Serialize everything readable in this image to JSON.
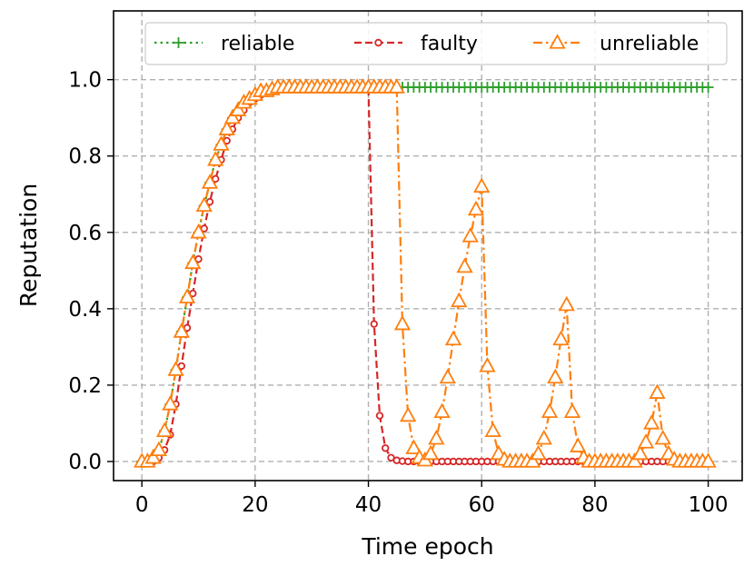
{
  "chart_data": {
    "type": "line",
    "title": "",
    "xlabel": "Time epoch",
    "ylabel": "Reputation",
    "xlim": [
      -5,
      106
    ],
    "ylim": [
      -0.05,
      1.18
    ],
    "xticks": [
      0,
      20,
      40,
      60,
      80,
      100
    ],
    "yticks": [
      0.0,
      0.2,
      0.4,
      0.6,
      0.8,
      1.0
    ],
    "xtick_labels": [
      "0",
      "20",
      "40",
      "60",
      "80",
      "100"
    ],
    "ytick_labels": [
      "0.0",
      "0.2",
      "0.4",
      "0.6",
      "0.8",
      "1.0"
    ],
    "grid": true,
    "legend_position": "top",
    "x": [
      0,
      1,
      2,
      3,
      4,
      5,
      6,
      7,
      8,
      9,
      10,
      11,
      12,
      13,
      14,
      15,
      16,
      17,
      18,
      19,
      20,
      21,
      22,
      23,
      24,
      25,
      26,
      27,
      28,
      29,
      30,
      31,
      32,
      33,
      34,
      35,
      36,
      37,
      38,
      39,
      40,
      41,
      42,
      43,
      44,
      45,
      46,
      47,
      48,
      49,
      50,
      51,
      52,
      53,
      54,
      55,
      56,
      57,
      58,
      59,
      60,
      61,
      62,
      63,
      64,
      65,
      66,
      67,
      68,
      69,
      70,
      71,
      72,
      73,
      74,
      75,
      76,
      77,
      78,
      79,
      80,
      81,
      82,
      83,
      84,
      85,
      86,
      87,
      88,
      89,
      90,
      91,
      92,
      93,
      94,
      95,
      96,
      97,
      98,
      99,
      100
    ],
    "series": [
      {
        "name": "reliable",
        "color": "#2ca02c",
        "line_style": "dotted",
        "marker": "plus",
        "values": [
          0.0,
          0.0,
          0.01,
          0.03,
          0.08,
          0.15,
          0.24,
          0.34,
          0.43,
          0.52,
          0.6,
          0.67,
          0.73,
          0.79,
          0.83,
          0.87,
          0.9,
          0.92,
          0.94,
          0.95,
          0.96,
          0.97,
          0.97,
          0.975,
          0.98,
          0.98,
          0.98,
          0.98,
          0.98,
          0.98,
          0.98,
          0.98,
          0.98,
          0.98,
          0.98,
          0.98,
          0.98,
          0.98,
          0.98,
          0.98,
          0.98,
          0.98,
          0.98,
          0.98,
          0.98,
          0.98,
          0.98,
          0.98,
          0.98,
          0.98,
          0.98,
          0.98,
          0.98,
          0.98,
          0.98,
          0.98,
          0.98,
          0.98,
          0.98,
          0.98,
          0.98,
          0.98,
          0.98,
          0.98,
          0.98,
          0.98,
          0.98,
          0.98,
          0.98,
          0.98,
          0.98,
          0.98,
          0.98,
          0.98,
          0.98,
          0.98,
          0.98,
          0.98,
          0.98,
          0.98,
          0.98,
          0.98,
          0.98,
          0.98,
          0.98,
          0.98,
          0.98,
          0.98,
          0.98,
          0.98,
          0.98,
          0.98,
          0.98,
          0.98,
          0.98,
          0.98,
          0.98,
          0.98,
          0.98,
          0.98,
          0.98
        ]
      },
      {
        "name": "faulty",
        "color": "#d62728",
        "line_style": "dashed",
        "marker": "circle",
        "values": [
          0.0,
          0.0,
          0.0,
          0.01,
          0.03,
          0.07,
          0.15,
          0.25,
          0.35,
          0.44,
          0.53,
          0.61,
          0.68,
          0.74,
          0.79,
          0.84,
          0.87,
          0.9,
          0.92,
          0.94,
          0.95,
          0.96,
          0.97,
          0.97,
          0.975,
          0.98,
          0.98,
          0.98,
          0.98,
          0.98,
          0.98,
          0.98,
          0.98,
          0.98,
          0.98,
          0.98,
          0.98,
          0.98,
          0.98,
          0.98,
          0.98,
          0.36,
          0.12,
          0.035,
          0.01,
          0.003,
          0.001,
          0.0,
          0.0,
          0.0,
          0.0,
          0.0,
          0.0,
          0.0,
          0.0,
          0.0,
          0.0,
          0.0,
          0.0,
          0.0,
          0.0,
          0.0,
          0.0,
          0.0,
          0.0,
          0.0,
          0.0,
          0.0,
          0.0,
          0.0,
          0.0,
          0.0,
          0.0,
          0.0,
          0.0,
          0.0,
          0.0,
          0.0,
          0.0,
          0.0,
          0.0,
          0.0,
          0.0,
          0.0,
          0.0,
          0.0,
          0.0,
          0.0,
          0.0,
          0.0,
          0.0,
          0.0,
          0.0,
          0.0,
          0.0,
          0.0,
          0.0,
          0.0,
          0.0,
          0.0,
          0.0
        ]
      },
      {
        "name": "unreliable",
        "color": "#ff7f0e",
        "line_style": "dashdot",
        "marker": "triangle",
        "values": [
          0.0,
          0.0,
          0.01,
          0.03,
          0.08,
          0.15,
          0.24,
          0.34,
          0.43,
          0.52,
          0.6,
          0.67,
          0.73,
          0.79,
          0.83,
          0.87,
          0.9,
          0.92,
          0.94,
          0.95,
          0.96,
          0.97,
          0.97,
          0.975,
          0.98,
          0.98,
          0.98,
          0.98,
          0.98,
          0.98,
          0.98,
          0.98,
          0.98,
          0.98,
          0.98,
          0.98,
          0.98,
          0.98,
          0.98,
          0.98,
          0.98,
          0.98,
          0.98,
          0.98,
          0.98,
          0.98,
          0.36,
          0.12,
          0.035,
          0.01,
          0.003,
          0.02,
          0.06,
          0.13,
          0.22,
          0.32,
          0.42,
          0.51,
          0.59,
          0.66,
          0.72,
          0.25,
          0.08,
          0.02,
          0.005,
          0.0,
          0.0,
          0.0,
          0.0,
          0.0,
          0.02,
          0.06,
          0.13,
          0.22,
          0.32,
          0.41,
          0.13,
          0.04,
          0.01,
          0.0,
          0.0,
          0.0,
          0.0,
          0.0,
          0.0,
          0.0,
          0.0,
          0.0,
          0.02,
          0.05,
          0.1,
          0.18,
          0.06,
          0.02,
          0.005,
          0.0,
          0.0,
          0.0,
          0.0,
          0.0,
          0.0
        ]
      }
    ]
  }
}
